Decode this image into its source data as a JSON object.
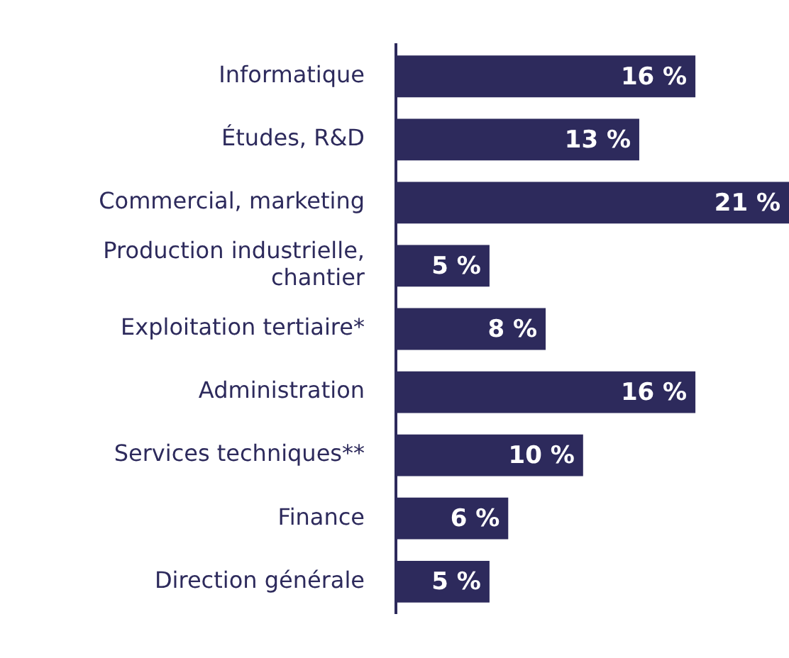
{
  "chart_data": {
    "type": "bar",
    "orientation": "horizontal",
    "categories": [
      "Informatique",
      "Études, R&D",
      "Commercial, marketing",
      "Production industrielle, chantier",
      "Exploitation tertiaire*",
      "Administration",
      "Services techniques**",
      "Finance",
      "Direction générale"
    ],
    "values": [
      16,
      13,
      21,
      5,
      8,
      16,
      10,
      6,
      5
    ],
    "value_labels": [
      "16 %",
      "13 %",
      "21 %",
      "5 %",
      "8 %",
      "16 %",
      "10 %",
      "6 %",
      "5 %"
    ],
    "color": "#2d2a5c",
    "xlim": [
      0,
      21
    ],
    "tick_labels": "y",
    "legend": false
  }
}
